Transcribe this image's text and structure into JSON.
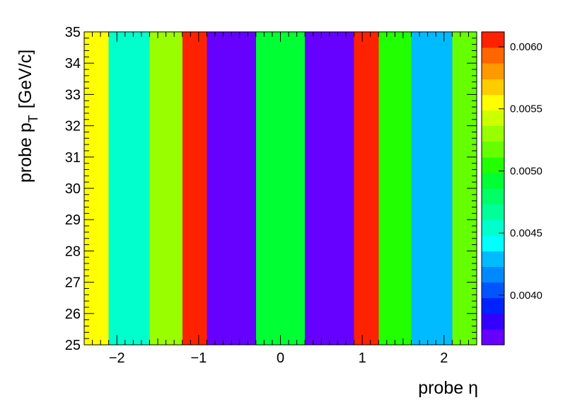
{
  "chart_data": {
    "type": "heatmap",
    "title": "",
    "xlabel": "probe η",
    "ylabel_main": "probe p",
    "ylabel_sub": "T",
    "ylabel_unit": "[GeV/c]",
    "xlim": [
      -2.4,
      2.4
    ],
    "ylim": [
      25,
      35
    ],
    "x_ticks": [
      -2,
      -1,
      0,
      1,
      2
    ],
    "x_tick_labels": [
      "−2",
      "−1",
      "0",
      "1",
      "2"
    ],
    "y_ticks": [
      25,
      26,
      27,
      28,
      29,
      30,
      31,
      32,
      33,
      34,
      35
    ],
    "y_tick_labels": [
      "25",
      "26",
      "27",
      "28",
      "29",
      "30",
      "31",
      "32",
      "33",
      "34",
      "35"
    ],
    "x_bin_edges": [
      -2.4,
      -2.1,
      -1.6,
      -1.2,
      -0.9,
      -0.3,
      0.3,
      0.9,
      1.2,
      1.6,
      2.1,
      2.4
    ],
    "y_bin_edges": [
      25,
      35
    ],
    "values": [
      0.00554,
      0.0045,
      0.0053,
      0.00612,
      0.00362,
      0.00488,
      0.00362,
      0.00612,
      0.00505,
      0.00428,
      0.00522
    ],
    "z_range": [
      0.0036,
      0.00612
    ],
    "colorbar_ticks": [
      0.004,
      0.0045,
      0.005,
      0.0055,
      0.006
    ],
    "colorbar_tick_labels": [
      "0.0040",
      "0.0045",
      "0.0050",
      "0.0055",
      "0.0060"
    ],
    "palette": [
      "#6600ff",
      "#3300ff",
      "#0022ff",
      "#0055ff",
      "#0088ff",
      "#00bbff",
      "#00ffff",
      "#00ffcc",
      "#00ff99",
      "#00ff66",
      "#00ff33",
      "#22ff00",
      "#66ff00",
      "#99ff00",
      "#ccff00",
      "#ffff00",
      "#ffcc00",
      "#ff9900",
      "#ff6600",
      "#ff2200"
    ]
  }
}
